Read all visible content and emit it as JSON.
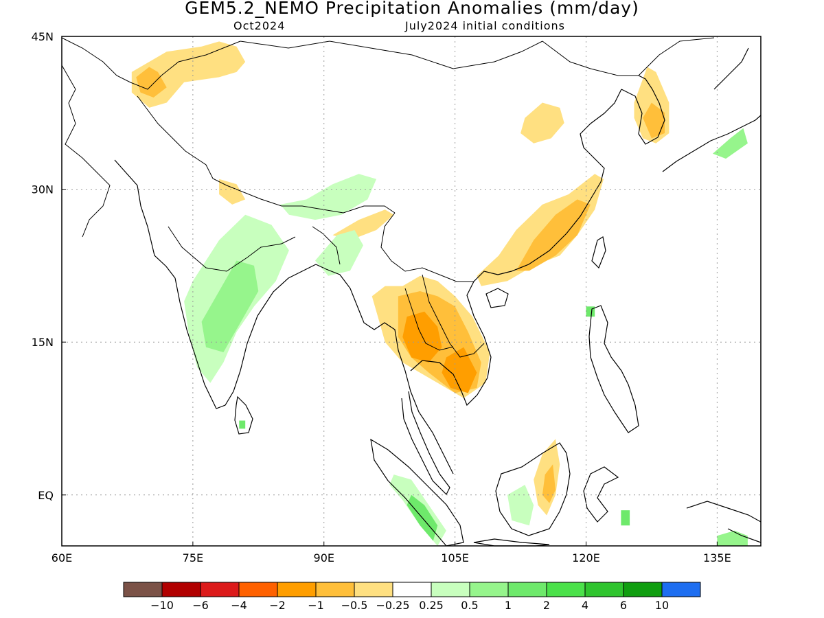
{
  "title": "GEM5.2_NEMO Precipitation Anomalies (mm/day)",
  "subtitle_left": "Oct2024",
  "subtitle_right": "July2024 initial conditions",
  "map": {
    "lon_range": [
      60,
      140
    ],
    "lat_range": [
      -5,
      45
    ],
    "lon_ticks": [
      {
        "v": 60,
        "label": "60E"
      },
      {
        "v": 75,
        "label": "75E"
      },
      {
        "v": 90,
        "label": "90E"
      },
      {
        "v": 105,
        "label": "105E"
      },
      {
        "v": 120,
        "label": "120E"
      },
      {
        "v": 135,
        "label": "135E"
      }
    ],
    "lat_ticks": [
      {
        "v": 45,
        "label": "45N"
      },
      {
        "v": 30,
        "label": "30N"
      },
      {
        "v": 15,
        "label": "15N"
      },
      {
        "v": 0,
        "label": "EQ"
      }
    ],
    "grid": "dotted"
  },
  "colorbar": {
    "colors": [
      "#7b5247",
      "#b10000",
      "#dc1a1a",
      "#ff6100",
      "#ff9e00",
      "#ffbf3a",
      "#ffe081",
      "#ffffff",
      "#c8ffbe",
      "#96f58c",
      "#6ee96b",
      "#4be14a",
      "#2fc42e",
      "#109e10",
      "#1e6ef0"
    ],
    "labels": [
      "−10",
      "−6",
      "−4",
      "−2",
      "−1",
      "−0.5",
      "−0.25",
      "0.25",
      "0.5",
      "1",
      "2",
      "4",
      "6",
      "10"
    ]
  },
  "anomaly_regions": [
    {
      "name": "northern-china-mongolia-dry",
      "color": "#ffe081",
      "pts": [
        [
          68,
          41.5
        ],
        [
          72,
          43.5
        ],
        [
          76,
          44
        ],
        [
          78,
          44.5
        ],
        [
          80,
          44
        ],
        [
          81,
          42.5
        ],
        [
          80,
          41.5
        ],
        [
          78,
          41
        ],
        [
          74,
          40.5
        ],
        [
          72,
          38.5
        ],
        [
          70,
          38
        ],
        [
          68,
          39.5
        ]
      ]
    },
    {
      "name": "northwest-dry-core",
      "color": "#ffbf3a",
      "pts": [
        [
          68.5,
          41
        ],
        [
          70,
          42
        ],
        [
          71,
          41.5
        ],
        [
          72,
          40
        ],
        [
          70.5,
          39
        ],
        [
          69,
          39.5
        ]
      ]
    },
    {
      "name": "north-china-dry",
      "color": "#ffe081",
      "pts": [
        [
          113,
          37
        ],
        [
          115,
          38.5
        ],
        [
          117,
          38
        ],
        [
          117.5,
          36.5
        ],
        [
          116,
          35
        ],
        [
          114,
          34.5
        ],
        [
          112.5,
          35.5
        ]
      ]
    },
    {
      "name": "southeast-china-dry",
      "color": "#ffe081",
      "pts": [
        [
          107.5,
          21.5
        ],
        [
          110,
          23.5
        ],
        [
          112,
          26
        ],
        [
          115,
          28.5
        ],
        [
          118,
          29.5
        ],
        [
          121,
          31.5
        ],
        [
          122,
          31
        ],
        [
          121,
          28
        ],
        [
          119,
          25.5
        ],
        [
          117,
          23.5
        ],
        [
          114,
          22.5
        ],
        [
          111,
          21
        ],
        [
          108,
          20.5
        ]
      ]
    },
    {
      "name": "southeast-china-dry-core",
      "color": "#ffbf3a",
      "pts": [
        [
          112,
          22
        ],
        [
          114,
          25
        ],
        [
          116.5,
          27.5
        ],
        [
          119,
          29
        ],
        [
          120.5,
          28.5
        ],
        [
          119,
          25.5
        ],
        [
          116.5,
          23.5
        ],
        [
          113.5,
          22
        ]
      ]
    },
    {
      "name": "korea-dry",
      "color": "#ffe081",
      "pts": [
        [
          125.5,
          38.5
        ],
        [
          127,
          42
        ],
        [
          128,
          41.5
        ],
        [
          129.5,
          38.5
        ],
        [
          129.5,
          35.5
        ],
        [
          128,
          34.5
        ],
        [
          126.5,
          35
        ],
        [
          125.5,
          37
        ]
      ]
    },
    {
      "name": "korea-dry-core",
      "color": "#ffbf3a",
      "pts": [
        [
          126.5,
          37
        ],
        [
          127.5,
          38.5
        ],
        [
          129,
          37.5
        ],
        [
          129,
          35.5
        ],
        [
          127.5,
          35
        ]
      ]
    },
    {
      "name": "indochina-dry",
      "color": "#ffe081",
      "pts": [
        [
          95.5,
          19.5
        ],
        [
          97,
          20.5
        ],
        [
          99,
          20.5
        ],
        [
          101,
          21.5
        ],
        [
          103,
          21
        ],
        [
          105,
          19.5
        ],
        [
          107,
          17.5
        ],
        [
          109,
          14
        ],
        [
          108.5,
          11
        ],
        [
          106,
          9.5
        ],
        [
          104,
          10.5
        ],
        [
          101,
          12
        ],
        [
          99,
          13
        ],
        [
          97,
          15
        ],
        [
          96.5,
          16.5
        ]
      ]
    },
    {
      "name": "indochina-dry-core",
      "color": "#ffbf3a",
      "pts": [
        [
          98.5,
          19.5
        ],
        [
          101,
          20
        ],
        [
          103,
          19.5
        ],
        [
          105,
          18.5
        ],
        [
          106.5,
          16
        ],
        [
          108,
          13
        ],
        [
          107.5,
          10.5
        ],
        [
          105,
          10
        ],
        [
          102,
          12
        ],
        [
          100,
          13.5
        ],
        [
          98.5,
          15.5
        ]
      ]
    },
    {
      "name": "thailand-dry-deep",
      "color": "#ff9e00",
      "pts": [
        [
          99.5,
          17.5
        ],
        [
          101.5,
          18
        ],
        [
          103,
          16.5
        ],
        [
          103.5,
          14.5
        ],
        [
          102,
          13
        ],
        [
          100,
          13.5
        ],
        [
          99,
          15.5
        ]
      ]
    },
    {
      "name": "cambodia-dry-deep",
      "color": "#ff9e00",
      "pts": [
        [
          104,
          13.5
        ],
        [
          106,
          14.5
        ],
        [
          107.5,
          12
        ],
        [
          106.5,
          10
        ],
        [
          104.5,
          10.5
        ],
        [
          103.5,
          12
        ]
      ]
    },
    {
      "name": "borneo-dry",
      "color": "#ffe081",
      "pts": [
        [
          115,
          4
        ],
        [
          116.5,
          5.5
        ],
        [
          117,
          3
        ],
        [
          116.5,
          0
        ],
        [
          115.5,
          -2
        ],
        [
          114.5,
          -1
        ],
        [
          114,
          1.5
        ]
      ]
    },
    {
      "name": "borneo-dry-core",
      "color": "#ffbf3a",
      "pts": [
        [
          115.3,
          2
        ],
        [
          116.2,
          3
        ],
        [
          116.5,
          0.5
        ],
        [
          115.8,
          -0.8
        ],
        [
          115,
          0
        ]
      ]
    },
    {
      "name": "himalaya-dry",
      "color": "#ffe081",
      "pts": [
        [
          78,
          31
        ],
        [
          80,
          30.5
        ],
        [
          81,
          29
        ],
        [
          79.5,
          28.5
        ],
        [
          78,
          29.5
        ]
      ]
    },
    {
      "name": "tibet-southeast-dry",
      "color": "#ffe081",
      "pts": [
        [
          91,
          25.5
        ],
        [
          94,
          27
        ],
        [
          97,
          28
        ],
        [
          98,
          27.5
        ],
        [
          96,
          26
        ],
        [
          93,
          25
        ]
      ]
    },
    {
      "name": "southern-india-wet",
      "color": "#c8ffbe",
      "pts": [
        [
          75,
          21
        ],
        [
          78,
          25
        ],
        [
          81,
          27.5
        ],
        [
          84,
          26.5
        ],
        [
          86,
          24
        ],
        [
          84.5,
          21
        ],
        [
          82,
          18.5
        ],
        [
          80,
          16
        ],
        [
          78.5,
          13
        ],
        [
          77,
          11
        ],
        [
          75.5,
          12.5
        ],
        [
          74.5,
          16
        ],
        [
          74,
          19
        ]
      ]
    },
    {
      "name": "southern-india-wet-core",
      "color": "#96f58c",
      "pts": [
        [
          76,
          17
        ],
        [
          78,
          20
        ],
        [
          80,
          23
        ],
        [
          82,
          22.5
        ],
        [
          82.5,
          20
        ],
        [
          80.5,
          17
        ],
        [
          78.5,
          14
        ],
        [
          76.5,
          14.5
        ]
      ]
    },
    {
      "name": "himalaya-tibet-wet",
      "color": "#c8ffbe",
      "pts": [
        [
          85,
          28.5
        ],
        [
          88,
          29
        ],
        [
          91,
          30.5
        ],
        [
          94,
          31.5
        ],
        [
          96,
          31
        ],
        [
          95,
          29
        ],
        [
          92,
          27.5
        ],
        [
          89,
          27
        ],
        [
          86,
          27.5
        ]
      ]
    },
    {
      "name": "bangladesh-myanmar-wet",
      "color": "#c8ffbe",
      "pts": [
        [
          89,
          23
        ],
        [
          91.5,
          25.5
        ],
        [
          93.5,
          26
        ],
        [
          94.5,
          24.5
        ],
        [
          93,
          22
        ],
        [
          90.5,
          21.5
        ]
      ]
    },
    {
      "name": "sumatra-wet",
      "color": "#c8ffbe",
      "pts": [
        [
          98,
          2
        ],
        [
          100,
          1.5
        ],
        [
          102,
          -1
        ],
        [
          104,
          -3.5
        ],
        [
          103,
          -5
        ],
        [
          101,
          -3
        ],
        [
          99,
          -0.5
        ],
        [
          97.5,
          1
        ]
      ]
    },
    {
      "name": "sumatra-wet-core",
      "color": "#6ee96b",
      "pts": [
        [
          100,
          0
        ],
        [
          101.5,
          -1
        ],
        [
          103,
          -3
        ],
        [
          102.5,
          -4.5
        ],
        [
          101,
          -3
        ],
        [
          99.5,
          -1
        ]
      ]
    },
    {
      "name": "borneo-southwest-wet",
      "color": "#c8ffbe",
      "pts": [
        [
          111,
          0
        ],
        [
          113,
          1
        ],
        [
          114,
          -1
        ],
        [
          113.5,
          -3
        ],
        [
          111.5,
          -2.5
        ]
      ]
    },
    {
      "name": "kyushu-wet",
      "color": "#96f58c",
      "pts": [
        [
          134.5,
          33.5
        ],
        [
          136.5,
          35
        ],
        [
          138,
          36
        ],
        [
          138.5,
          34.5
        ],
        [
          136,
          33
        ]
      ]
    },
    {
      "name": "new-guinea-wet",
      "color": "#96f58c",
      "pts": [
        [
          135,
          -4
        ],
        [
          137,
          -3.5
        ],
        [
          138.5,
          -4
        ],
        [
          138.5,
          -5
        ],
        [
          135,
          -5
        ]
      ]
    },
    {
      "name": "sulawesi-wet",
      "color": "#6ee96b",
      "pts": [
        [
          124,
          -1.5
        ],
        [
          125,
          -1.5
        ],
        [
          125,
          -3
        ],
        [
          124,
          -3
        ]
      ]
    },
    {
      "name": "luzon-wet",
      "color": "#6ee96b",
      "pts": [
        [
          120,
          18.5
        ],
        [
          121,
          18.5
        ],
        [
          121,
          17.5
        ],
        [
          120,
          17.5
        ]
      ]
    },
    {
      "name": "sri-lanka-wet",
      "color": "#6ee96b",
      "pts": [
        [
          80.3,
          7.3
        ],
        [
          81,
          7.3
        ],
        [
          81,
          6.5
        ],
        [
          80.3,
          6.5
        ]
      ]
    }
  ]
}
